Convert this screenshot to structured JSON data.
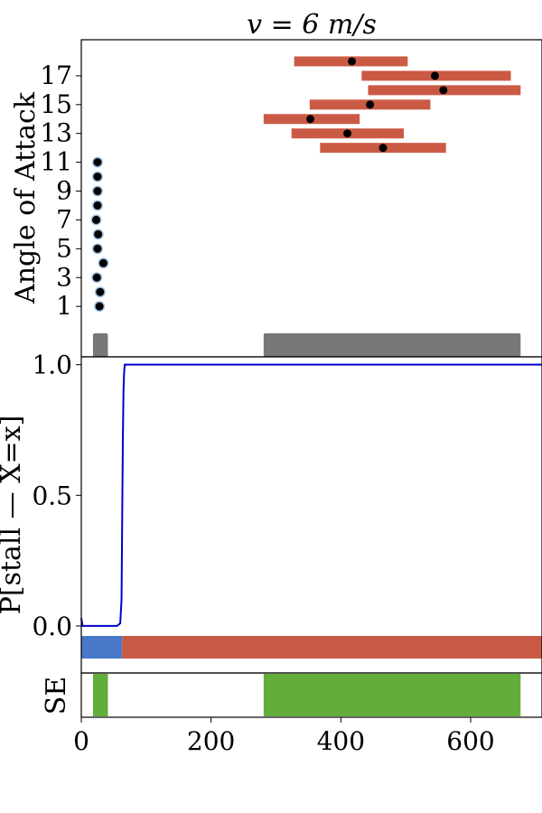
{
  "chart_data": [
    {
      "type": "scatter",
      "panel": "angle-of-attack",
      "title": "v = 6 m/s",
      "ylabel": "Angle of Attack",
      "xlim": [
        0,
        710
      ],
      "ylim": [
        -2.5,
        19.5
      ],
      "y_ticks": [
        1,
        3,
        5,
        7,
        9,
        11,
        13,
        15,
        17
      ],
      "colors": {
        "interval": "#cb5a45",
        "point": "#000000",
        "point_halo": "#5b9bd5",
        "shade": "#777777"
      },
      "intervals": [
        {
          "y": 18,
          "start": 328,
          "end": 503,
          "point": 417
        },
        {
          "y": 17,
          "start": 432,
          "end": 662,
          "point": 545
        },
        {
          "y": 16,
          "start": 442,
          "end": 677,
          "point": 558
        },
        {
          "y": 15,
          "start": 352,
          "end": 538,
          "point": 445
        },
        {
          "y": 14,
          "start": 281,
          "end": 429,
          "point": 353
        },
        {
          "y": 13,
          "start": 324,
          "end": 497,
          "point": 410
        },
        {
          "y": 12,
          "start": 368,
          "end": 562,
          "point": 465
        }
      ],
      "points": [
        {
          "x": 25,
          "y": 11
        },
        {
          "x": 25,
          "y": 10
        },
        {
          "x": 25,
          "y": 9
        },
        {
          "x": 25,
          "y": 8
        },
        {
          "x": 23,
          "y": 7
        },
        {
          "x": 26,
          "y": 6
        },
        {
          "x": 25,
          "y": 5
        },
        {
          "x": 34,
          "y": 4
        },
        {
          "x": 24,
          "y": 3
        },
        {
          "x": 29,
          "y": 2
        },
        {
          "x": 28,
          "y": 1
        }
      ],
      "shaded_regions": [
        {
          "start": 18,
          "end": 41
        },
        {
          "start": 281,
          "end": 677
        }
      ]
    },
    {
      "type": "line",
      "panel": "stall-probability",
      "ylabel": "P[stall — X=x]",
      "xlim": [
        0,
        710
      ],
      "ylim": [
        -0.18,
        1.03
      ],
      "y_ticks": [
        "0.0",
        "0.5",
        "1.0"
      ],
      "series": [
        {
          "color": "#0000cc",
          "x": [
            0,
            2,
            5,
            30,
            55,
            60,
            62,
            63,
            64,
            65,
            66,
            67,
            70,
            710
          ],
          "y": [
            0.03,
            0.0,
            0.0,
            0.0,
            0.0,
            0.01,
            0.1,
            0.4,
            0.7,
            0.9,
            0.97,
            1.0,
            1.0,
            1.0
          ]
        }
      ],
      "class_bands": [
        {
          "start": 0,
          "end": 63,
          "color": "#4a78c9"
        },
        {
          "start": 63,
          "end": 710,
          "color": "#c95a45"
        }
      ]
    },
    {
      "type": "area",
      "panel": "se",
      "ylabel": "SE",
      "xlabel": "",
      "xlim": [
        0,
        710
      ],
      "x_ticks": [
        "0",
        "200",
        "400",
        "600"
      ],
      "color": "#63ad3b",
      "regions": [
        {
          "start": 18,
          "end": 41
        },
        {
          "start": 281,
          "end": 677
        }
      ]
    }
  ]
}
